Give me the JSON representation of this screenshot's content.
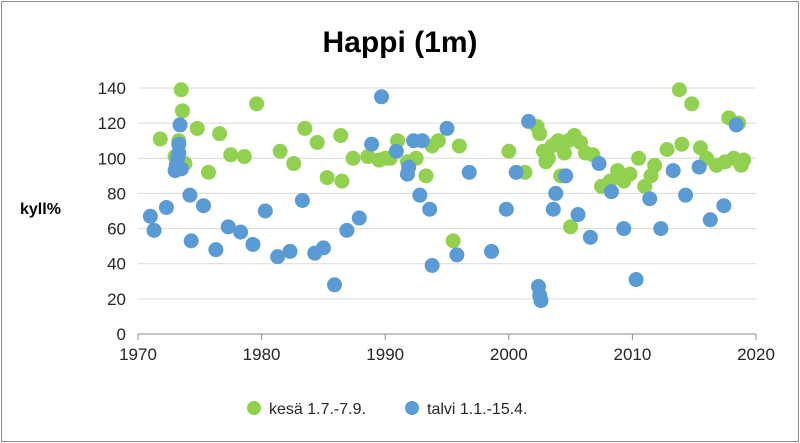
{
  "chart_data": {
    "type": "scatter",
    "title": "Happi (1m)",
    "xlabel": "",
    "ylabel": "kyll%",
    "xlim": [
      1970,
      2020
    ],
    "ylim": [
      0,
      140
    ],
    "x_ticks": [
      1970,
      1980,
      1990,
      2000,
      2010,
      2020
    ],
    "y_ticks": [
      0,
      20,
      40,
      60,
      80,
      100,
      120,
      140
    ],
    "grid": "horizontal",
    "legend_position": "bottom",
    "series": [
      {
        "name": "kesä 1.7.-7.9.",
        "color": "#92d050",
        "points": [
          [
            1971.8,
            111
          ],
          [
            1973.0,
            101
          ],
          [
            1973.3,
            110
          ],
          [
            1973.5,
            139
          ],
          [
            1973.6,
            127
          ],
          [
            1973.8,
            97
          ],
          [
            1974.8,
            117
          ],
          [
            1975.7,
            92
          ],
          [
            1976.6,
            114
          ],
          [
            1977.5,
            102
          ],
          [
            1978.6,
            101
          ],
          [
            1979.6,
            131
          ],
          [
            1981.5,
            104
          ],
          [
            1982.6,
            97
          ],
          [
            1983.5,
            117
          ],
          [
            1984.5,
            109
          ],
          [
            1985.3,
            89
          ],
          [
            1986.4,
            113
          ],
          [
            1986.5,
            87
          ],
          [
            1987.4,
            100
          ],
          [
            1988.6,
            101
          ],
          [
            1989.5,
            99
          ],
          [
            1990.0,
            100
          ],
          [
            1990.4,
            100
          ],
          [
            1991.0,
            110
          ],
          [
            1991.8,
            98
          ],
          [
            1992.5,
            100
          ],
          [
            1993.3,
            90
          ],
          [
            1993.8,
            107
          ],
          [
            1994.3,
            110
          ],
          [
            1995.5,
            53
          ],
          [
            1996.0,
            107
          ],
          [
            2000.0,
            104
          ],
          [
            2001.3,
            92
          ],
          [
            2002.3,
            118
          ],
          [
            2002.5,
            114
          ],
          [
            2002.8,
            104
          ],
          [
            2003.0,
            98
          ],
          [
            2003.2,
            100
          ],
          [
            2003.5,
            107
          ],
          [
            2003.7,
            108
          ],
          [
            2004.0,
            110
          ],
          [
            2004.2,
            90
          ],
          [
            2004.5,
            103
          ],
          [
            2004.8,
            110
          ],
          [
            2005.0,
            61
          ],
          [
            2005.3,
            113
          ],
          [
            2005.8,
            109
          ],
          [
            2006.2,
            103
          ],
          [
            2006.8,
            102
          ],
          [
            2007.5,
            84
          ],
          [
            2008.2,
            87
          ],
          [
            2008.8,
            93
          ],
          [
            2009.3,
            87
          ],
          [
            2009.8,
            91
          ],
          [
            2010.5,
            100
          ],
          [
            2011.0,
            84
          ],
          [
            2011.5,
            90
          ],
          [
            2011.8,
            96
          ],
          [
            2012.8,
            105
          ],
          [
            2013.8,
            139
          ],
          [
            2014.0,
            108
          ],
          [
            2014.8,
            131
          ],
          [
            2015.5,
            106
          ],
          [
            2016.0,
            100
          ],
          [
            2016.8,
            96
          ],
          [
            2017.5,
            98
          ],
          [
            2017.8,
            123
          ],
          [
            2018.2,
            100
          ],
          [
            2018.6,
            120
          ],
          [
            2018.8,
            96
          ],
          [
            2019.0,
            99
          ]
        ]
      },
      {
        "name": "talvi 1.1.-15.4.",
        "color": "#5b9bd5",
        "points": [
          [
            1971.0,
            67
          ],
          [
            1971.3,
            59
          ],
          [
            1972.3,
            72
          ],
          [
            1973.0,
            93
          ],
          [
            1973.1,
            96
          ],
          [
            1973.2,
            100
          ],
          [
            1973.3,
            103
          ],
          [
            1973.3,
            108
          ],
          [
            1973.4,
            119
          ],
          [
            1973.5,
            94
          ],
          [
            1974.2,
            79
          ],
          [
            1974.3,
            53
          ],
          [
            1975.3,
            73
          ],
          [
            1976.3,
            48
          ],
          [
            1977.3,
            61
          ],
          [
            1978.3,
            58
          ],
          [
            1979.3,
            51
          ],
          [
            1980.3,
            70
          ],
          [
            1981.3,
            44
          ],
          [
            1982.3,
            47
          ],
          [
            1983.3,
            76
          ],
          [
            1984.3,
            46
          ],
          [
            1985.0,
            49
          ],
          [
            1985.9,
            28
          ],
          [
            1986.9,
            59
          ],
          [
            1987.9,
            66
          ],
          [
            1988.9,
            108
          ],
          [
            1989.7,
            135
          ],
          [
            1990.9,
            104
          ],
          [
            1991.8,
            91
          ],
          [
            1991.9,
            95
          ],
          [
            1992.3,
            110
          ],
          [
            1992.8,
            79
          ],
          [
            1993.0,
            110
          ],
          [
            1993.6,
            71
          ],
          [
            1993.8,
            39
          ],
          [
            1995.0,
            117
          ],
          [
            1995.8,
            45
          ],
          [
            1996.8,
            92
          ],
          [
            1998.6,
            47
          ],
          [
            1999.8,
            71
          ],
          [
            2000.6,
            92
          ],
          [
            2001.6,
            121
          ],
          [
            2002.4,
            27
          ],
          [
            2002.5,
            22
          ],
          [
            2002.6,
            19
          ],
          [
            2003.6,
            71
          ],
          [
            2003.8,
            80
          ],
          [
            2004.6,
            90
          ],
          [
            2005.6,
            68
          ],
          [
            2006.6,
            55
          ],
          [
            2007.3,
            97
          ],
          [
            2008.3,
            81
          ],
          [
            2009.3,
            60
          ],
          [
            2010.3,
            31
          ],
          [
            2011.4,
            77
          ],
          [
            2012.3,
            60
          ],
          [
            2013.3,
            93
          ],
          [
            2014.3,
            79
          ],
          [
            2015.4,
            95
          ],
          [
            2016.3,
            65
          ],
          [
            2017.4,
            73
          ],
          [
            2018.4,
            119
          ]
        ]
      }
    ]
  }
}
